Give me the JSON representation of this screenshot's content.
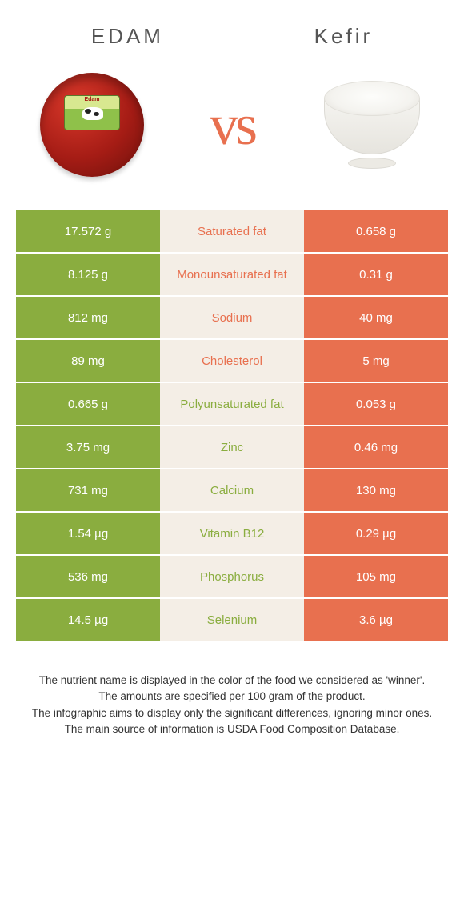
{
  "header": {
    "left_title": "EDAM",
    "right_title": "Kefir"
  },
  "vs_text": "vs",
  "colors": {
    "edam": "#8aad3f",
    "kefir": "#e8704f",
    "mid_bg": "#f4eee6",
    "text_light": "#ffffff"
  },
  "rows": [
    {
      "left": "17.572 g",
      "label": "Saturated fat",
      "right": "0.658 g",
      "winner": "kefir"
    },
    {
      "left": "8.125 g",
      "label": "Monounsaturated fat",
      "right": "0.31 g",
      "winner": "kefir"
    },
    {
      "left": "812 mg",
      "label": "Sodium",
      "right": "40 mg",
      "winner": "kefir"
    },
    {
      "left": "89 mg",
      "label": "Cholesterol",
      "right": "5 mg",
      "winner": "kefir"
    },
    {
      "left": "0.665 g",
      "label": "Polyunsaturated fat",
      "right": "0.053 g",
      "winner": "edam"
    },
    {
      "left": "3.75 mg",
      "label": "Zinc",
      "right": "0.46 mg",
      "winner": "edam"
    },
    {
      "left": "731 mg",
      "label": "Calcium",
      "right": "130 mg",
      "winner": "edam"
    },
    {
      "left": "1.54 µg",
      "label": "Vitamin B12",
      "right": "0.29 µg",
      "winner": "edam"
    },
    {
      "left": "536 mg",
      "label": "Phosphorus",
      "right": "105 mg",
      "winner": "edam"
    },
    {
      "left": "14.5 µg",
      "label": "Selenium",
      "right": "3.6 µg",
      "winner": "edam"
    }
  ],
  "footer": {
    "line1": "The nutrient name is displayed in the color of the food we considered as 'winner'.",
    "line2": "The amounts are specified per 100 gram of the product.",
    "line3": "The infographic aims to display only the significant differences, ignoring minor ones.",
    "line4": "The main source of information is USDA Food Composition Database."
  }
}
